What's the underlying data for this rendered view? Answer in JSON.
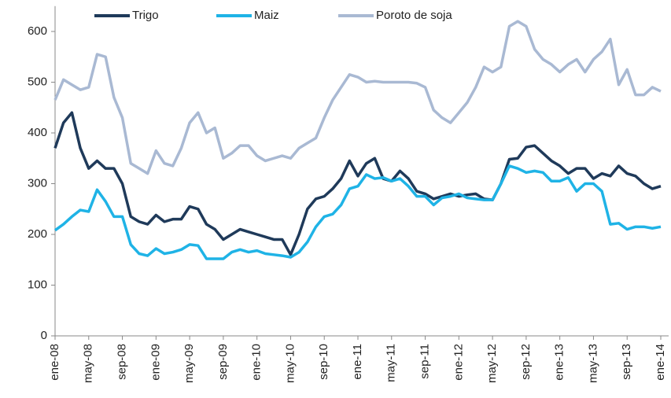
{
  "chart_data": {
    "type": "line",
    "categories": [
      "ene-08",
      null,
      null,
      null,
      "may-08",
      null,
      null,
      null,
      "sep-08",
      null,
      null,
      null,
      "ene-09",
      null,
      null,
      null,
      "may-09",
      null,
      null,
      null,
      "sep-09",
      null,
      null,
      null,
      "ene-10",
      null,
      null,
      null,
      "may-10",
      null,
      null,
      null,
      "sep-10",
      null,
      null,
      null,
      "ene-11",
      null,
      null,
      null,
      "may-11",
      null,
      null,
      null,
      "sep-11",
      null,
      null,
      null,
      "ene-12",
      null,
      null,
      null,
      "may-12",
      null,
      null,
      null,
      "sep-12",
      null,
      null,
      null,
      "ene-13",
      null,
      null,
      null,
      "may-13",
      null,
      null,
      null,
      "sep-13",
      null,
      null,
      null,
      "ene-14"
    ],
    "series": [
      {
        "name": "Trigo",
        "color": "#1f3a5a",
        "values": [
          370,
          420,
          440,
          370,
          330,
          345,
          330,
          330,
          300,
          235,
          225,
          220,
          238,
          225,
          230,
          230,
          255,
          250,
          220,
          210,
          190,
          200,
          210,
          205,
          200,
          195,
          190,
          190,
          160,
          200,
          250,
          270,
          275,
          290,
          310,
          345,
          315,
          340,
          350,
          310,
          305,
          325,
          310,
          285,
          280,
          270,
          275,
          280,
          275,
          278,
          280,
          270,
          268,
          300,
          348,
          350,
          372,
          375,
          360,
          345,
          335,
          320,
          330,
          330,
          310,
          320,
          315,
          335,
          320,
          315,
          300,
          290,
          295
        ]
      },
      {
        "name": "Maiz",
        "color": "#1fb3e6",
        "values": [
          208,
          220,
          235,
          248,
          245,
          288,
          265,
          235,
          235,
          180,
          162,
          158,
          172,
          162,
          165,
          170,
          180,
          178,
          152,
          152,
          152,
          165,
          170,
          165,
          168,
          162,
          160,
          158,
          155,
          165,
          185,
          215,
          235,
          240,
          258,
          290,
          295,
          318,
          310,
          312,
          305,
          310,
          295,
          275,
          275,
          258,
          272,
          275,
          280,
          272,
          270,
          268,
          268,
          300,
          335,
          330,
          322,
          325,
          322,
          305,
          305,
          312,
          285,
          300,
          300,
          285,
          220,
          222,
          210,
          215,
          215,
          212,
          215
        ]
      },
      {
        "name": "Poroto de soja",
        "color": "#a9b9d3",
        "values": [
          465,
          505,
          495,
          485,
          490,
          555,
          550,
          470,
          430,
          340,
          330,
          320,
          365,
          340,
          335,
          370,
          420,
          440,
          400,
          410,
          350,
          360,
          375,
          375,
          355,
          345,
          350,
          355,
          350,
          370,
          380,
          390,
          430,
          465,
          490,
          515,
          510,
          500,
          502,
          500,
          500,
          500,
          500,
          498,
          490,
          445,
          430,
          420,
          440,
          460,
          490,
          530,
          520,
          530,
          610,
          620,
          610,
          565,
          545,
          535,
          520,
          535,
          545,
          520,
          545,
          560,
          585,
          495,
          525,
          475,
          475,
          490,
          482
        ]
      }
    ],
    "ylim": [
      0,
      650
    ],
    "yticks": [
      0,
      100,
      200,
      300,
      400,
      500,
      600
    ],
    "grid": false,
    "legend": "top"
  }
}
